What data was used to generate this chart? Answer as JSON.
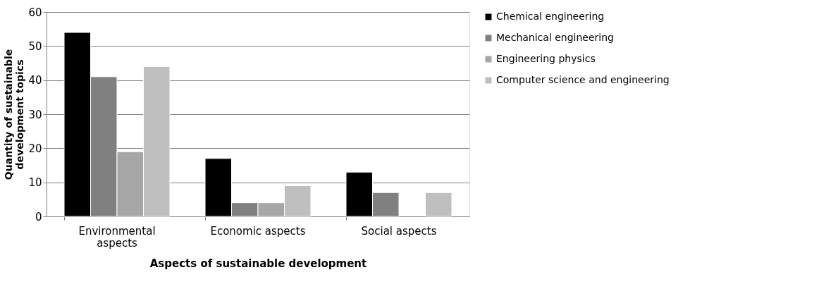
{
  "chart_data": {
    "type": "bar",
    "xlabel": "Aspects of sustainable development",
    "ylabel": "Quantity of sustainable development topics",
    "categories": [
      "Environmental aspects",
      "Economic aspects",
      "Social aspects"
    ],
    "series": [
      {
        "name": "Chemical engineering",
        "color": "#000000",
        "values": [
          54,
          17,
          13
        ]
      },
      {
        "name": "Mechanical engineering",
        "color": "#808080",
        "values": [
          41,
          4,
          7
        ]
      },
      {
        "name": "Engineering physics",
        "color": "#a6a6a6",
        "values": [
          19,
          4,
          null
        ]
      },
      {
        "name": "Computer science and engineering",
        "color": "#bfbfbf",
        "values": [
          44,
          9,
          7
        ]
      }
    ],
    "ylim": [
      0,
      60
    ],
    "yticks": [
      0,
      10,
      20,
      30,
      40,
      50,
      60
    ],
    "grid": "y",
    "legend": "right"
  }
}
